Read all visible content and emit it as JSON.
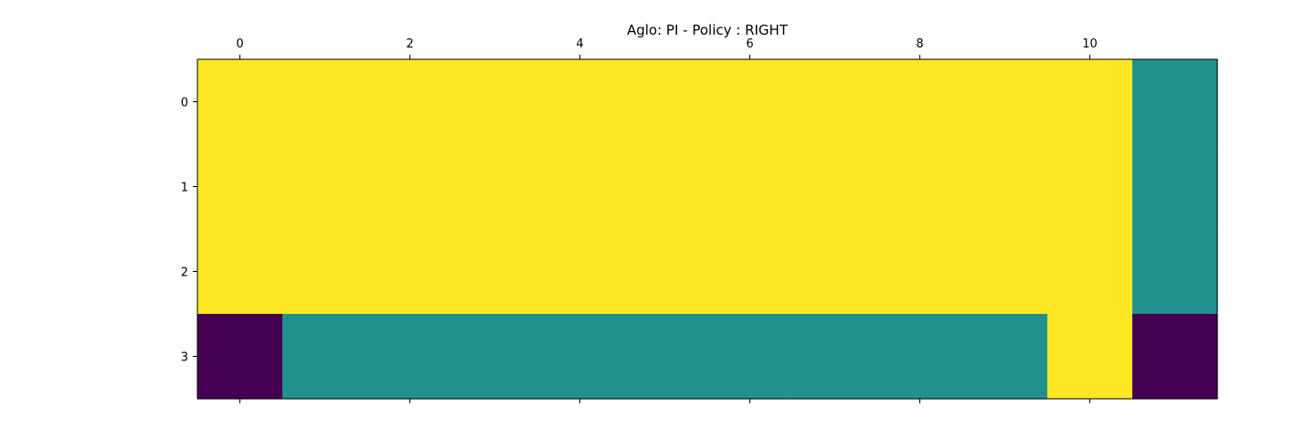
{
  "chart_data": {
    "type": "heatmap",
    "title": "Aglo: PI - Policy : RIGHT",
    "xlabel": "",
    "ylabel": "",
    "x_axis_position": "top",
    "x_ticks": [
      0,
      2,
      4,
      6,
      8,
      10
    ],
    "y_ticks": [
      0,
      1,
      2,
      3
    ],
    "xlim": [
      -0.5,
      11.5
    ],
    "ylim": [
      3.5,
      -0.5
    ],
    "colormap": "viridis",
    "value_colors": {
      "0": "#440154",
      "1": "#21918c",
      "2": "#fde725"
    },
    "grid": [
      [
        2,
        2,
        2,
        2,
        2,
        2,
        2,
        2,
        2,
        2,
        2,
        1
      ],
      [
        2,
        2,
        2,
        2,
        2,
        2,
        2,
        2,
        2,
        2,
        2,
        1
      ],
      [
        2,
        2,
        2,
        2,
        2,
        2,
        2,
        2,
        2,
        2,
        2,
        1
      ],
      [
        0,
        1,
        1,
        1,
        1,
        1,
        1,
        1,
        1,
        1,
        2,
        0
      ]
    ]
  }
}
